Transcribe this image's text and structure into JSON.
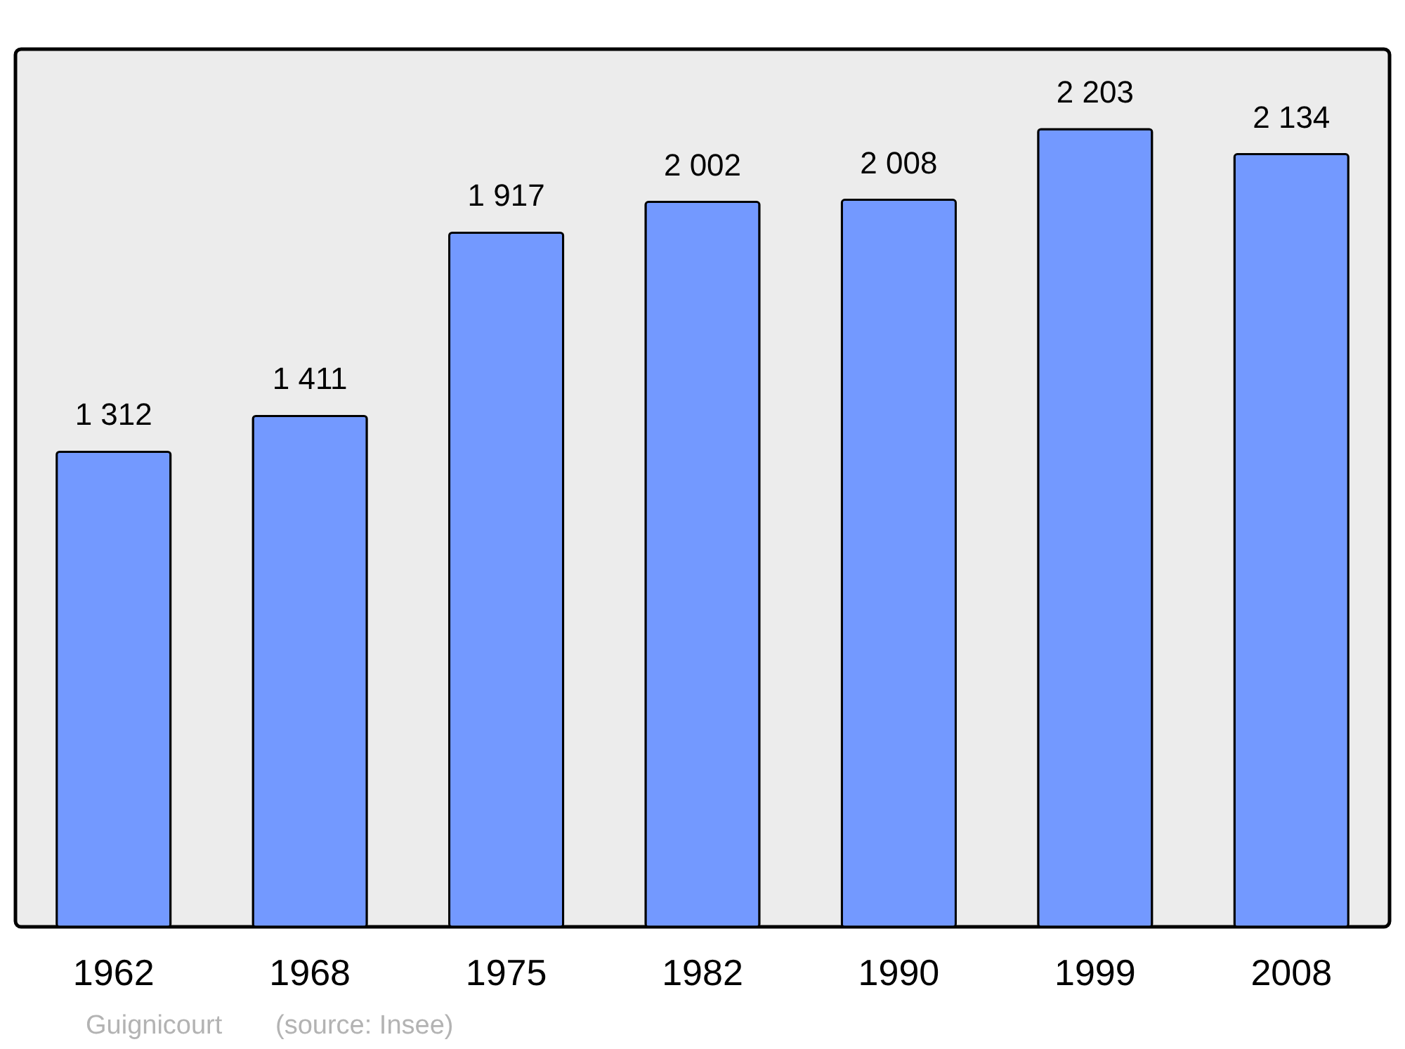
{
  "chart_data": {
    "type": "bar",
    "categories": [
      "1962",
      "1968",
      "1975",
      "1982",
      "1990",
      "1999",
      "2008"
    ],
    "values": [
      1312,
      1411,
      1917,
      2002,
      2008,
      2203,
      2134
    ],
    "value_labels": [
      "1 312",
      "1 411",
      "1 917",
      "2 002",
      "2 008",
      "2 203",
      "2 134"
    ],
    "color": "#7399ff",
    "ylim": [
      0,
      2424
    ],
    "grid": false,
    "annotations": [
      "Guignicourt",
      "(source: Insee)"
    ]
  }
}
